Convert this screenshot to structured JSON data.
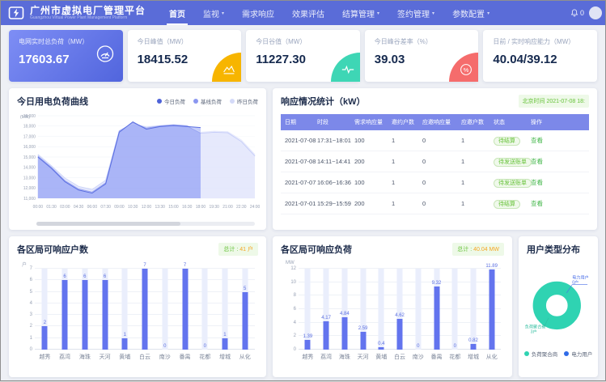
{
  "navbar": {
    "brand_title": "广州市虚拟电厂管理平台",
    "brand_subtitle": "Guangzhou Virtual Power Plant Management Platform",
    "items": [
      {
        "label": "首页",
        "active": true,
        "dropdown": false
      },
      {
        "label": "监视",
        "active": false,
        "dropdown": true
      },
      {
        "label": "需求响应",
        "active": false,
        "dropdown": false
      },
      {
        "label": "效果评估",
        "active": false,
        "dropdown": false
      },
      {
        "label": "结算管理",
        "active": false,
        "dropdown": true
      },
      {
        "label": "签约管理",
        "active": false,
        "dropdown": true
      },
      {
        "label": "参数配置",
        "active": false,
        "dropdown": true
      }
    ],
    "notification_count": "0"
  },
  "kpi": {
    "cards": [
      {
        "label": "电网实时总负荷（MW）",
        "value": "17603.67",
        "icon": "gauge-icon",
        "accent": "#5165dd"
      },
      {
        "label": "今日峰值（MW）",
        "value": "18415.52",
        "icon": "peak-chart-icon",
        "accent": "#f7b500"
      },
      {
        "label": "今日谷值（MW）",
        "value": "11227.30",
        "icon": "pulse-icon",
        "accent": "#3ed6b5"
      },
      {
        "label": "今日峰谷差率（%）",
        "value": "39.03",
        "icon": "percent-icon",
        "accent": "#f56c6c"
      },
      {
        "label": "日前 / 实时响应能力（MW）",
        "value": "40.04/39.12",
        "icon": "",
        "accent": ""
      }
    ]
  },
  "load_panel": {
    "title": "今日用电负荷曲线"
  },
  "response_panel": {
    "title": "响应情况统计（kW）",
    "time_badge": "北京时间 2021-07-08 18:",
    "columns": [
      "日期",
      "时段",
      "需求响应量",
      "邀约户数",
      "应邀响应量",
      "应邀户数",
      "状态",
      "操作"
    ],
    "rows": [
      [
        "2021-07-08",
        "17:31~18:01",
        "100",
        "1",
        "0",
        "1",
        "待结算",
        "查看"
      ],
      [
        "2021-07-08",
        "14:11~14:41",
        "200",
        "1",
        "0",
        "1",
        "待发送账单",
        "查看"
      ],
      [
        "2021-07-07",
        "16:06~16:36",
        "100",
        "1",
        "0",
        "1",
        "待发送账单",
        "查看"
      ],
      [
        "2021-07-01",
        "15:29~15:59",
        "200",
        "1",
        "0",
        "1",
        "待结算",
        "查看"
      ]
    ]
  },
  "district_users_panel": {
    "title": "各区局可响应户数",
    "total_label": "总计 :",
    "total_value": "41 户"
  },
  "district_load_panel": {
    "title": "各区局可响应负荷",
    "total_label": "总计 :",
    "total_value": "40.04 MW"
  },
  "user_type_panel": {
    "title": "用户类型分布",
    "callout_power_name": "电力用户",
    "callout_power_count": "0户",
    "callout_agg_name": "负荷聚合商",
    "callout_agg_count": "3户",
    "legend": [
      {
        "label": "负荷聚合商",
        "color": "#2fd3b2"
      },
      {
        "label": "电力用户",
        "color": "#2f6be8"
      }
    ]
  },
  "colors": {
    "navbar": "#5a6cd8",
    "bar_blue": "#6374ee",
    "bar_track": "#eaeefc",
    "green_text": "#67c23a",
    "link_green": "#49b84f",
    "table_header": "#7c88e9",
    "donut_teal": "#2fd3b2",
    "donut_blue": "#2f6be8"
  },
  "chart_data": [
    {
      "id": "load_curve",
      "type": "area",
      "title": "今日用电负荷曲线",
      "unit": "(MW)",
      "x": [
        "00:00",
        "01:30",
        "03:00",
        "04:30",
        "06:00",
        "07:30",
        "09:00",
        "10:30",
        "12:00",
        "13:30",
        "15:00",
        "16:30",
        "18:00",
        "19:30",
        "21:00",
        "22:30",
        "24:00"
      ],
      "ylim": [
        11000,
        19000
      ],
      "ytick_step": 1000,
      "legend": [
        {
          "label": "今日负荷",
          "color": "#4e63d8"
        },
        {
          "label": "基线负荷",
          "color": "#8b97f0"
        },
        {
          "label": "昨日负荷",
          "color": "#d4daf8"
        }
      ],
      "series": [
        {
          "name": "今日负荷",
          "color": "#5a6ee0",
          "fill": "rgba(122,140,245,0.45)",
          "values": [
            15000,
            13900,
            12600,
            11800,
            11500,
            12400,
            17400,
            18400,
            17700,
            17950,
            18050,
            17950,
            17850
          ]
        },
        {
          "name": "基线负荷",
          "color": "#9aa6f2",
          "fill": "rgba(160,174,246,0.28)",
          "values": [
            15100,
            14000,
            12700,
            11900,
            11600,
            12500,
            17500,
            18300,
            17800,
            18000,
            18100,
            18000,
            17300,
            17400,
            17350,
            16500,
            15100
          ]
        },
        {
          "name": "昨日负荷",
          "color": "#cfd6f9",
          "fill": "rgba(207,214,249,0.55)",
          "values": [
            15250,
            14150,
            12950,
            12150,
            11850,
            12750,
            17550,
            18250,
            17900,
            18050,
            18150,
            18050,
            17400,
            17500,
            17450,
            16650,
            15250
          ]
        }
      ]
    },
    {
      "id": "district_users",
      "type": "bar",
      "title": "各区局可响应户数",
      "unit": "户",
      "total": "41 户",
      "categories": [
        "越秀",
        "荔湾",
        "海珠",
        "天河",
        "黄埔",
        "白云",
        "南沙",
        "番禺",
        "花都",
        "增城",
        "从化"
      ],
      "values": [
        2,
        6,
        6,
        6,
        1,
        7,
        0,
        7,
        0,
        1,
        5
      ],
      "ylim": [
        0,
        7
      ],
      "yticks": [
        0,
        1,
        2,
        3,
        4,
        5,
        6,
        7
      ]
    },
    {
      "id": "district_load",
      "type": "bar",
      "title": "各区局可响应负荷",
      "unit": "MW",
      "total": "40.04 MW",
      "categories": [
        "越秀",
        "荔湾",
        "海珠",
        "天河",
        "黄埔",
        "白云",
        "南沙",
        "番禺",
        "花都",
        "增城",
        "从化"
      ],
      "values": [
        1.39,
        4.17,
        4.84,
        2.59,
        0.4,
        4.62,
        0,
        9.32,
        0,
        0.82,
        11.89
      ],
      "ylim": [
        0,
        12
      ],
      "yticks": [
        0,
        2,
        4,
        6,
        8,
        10,
        12
      ]
    },
    {
      "id": "user_type",
      "type": "pie",
      "title": "用户类型分布",
      "slices": [
        {
          "label": "负荷聚合商",
          "value": 3,
          "color": "#2fd3b2"
        },
        {
          "label": "电力用户",
          "value": 0,
          "color": "#2f6be8"
        }
      ],
      "legend_position": "bottom"
    }
  ]
}
